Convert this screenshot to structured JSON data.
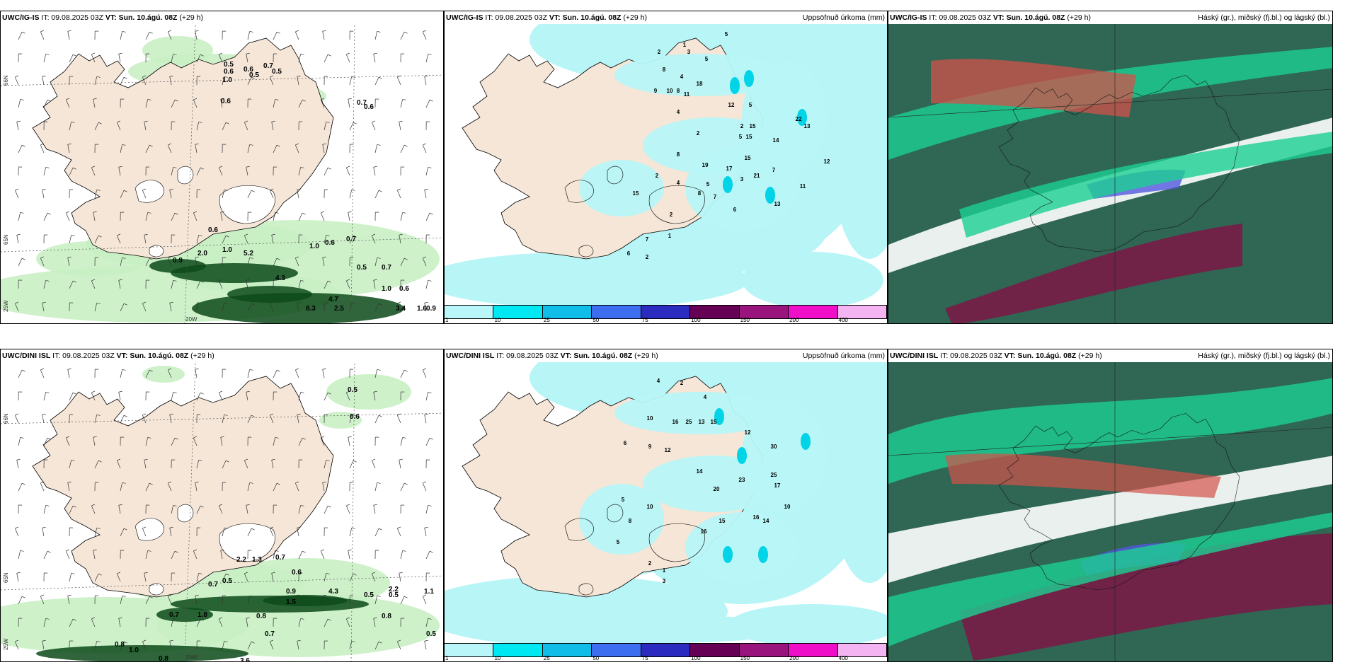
{
  "panels": [
    {
      "id": "p1",
      "model": "UWC/IG-IS",
      "it": "IT: 09.08.2025 03Z",
      "vt_label": "VT:",
      "vt": "Sun. 10.ágú. 08Z",
      "lead": "(+29 h)",
      "right": "",
      "kind": "wind",
      "lat_labels": [
        "66N",
        "65N",
        "25W",
        "20W"
      ],
      "values": [
        "0.6",
        "0.5",
        "0.7",
        "1.0",
        "0.6",
        "0.5",
        "0.5",
        "0.6",
        "0.7",
        "0.6",
        "0.6",
        "1.0",
        "0.9",
        "2.0",
        "5.2",
        "1.0",
        "0.6",
        "0.7",
        "0.5",
        "0.7",
        "4.3",
        "8.3",
        "4.7",
        "2.5",
        "1.0",
        "0.6",
        "3.4",
        "1.6",
        "0.9"
      ]
    },
    {
      "id": "p2",
      "model": "UWC/IG-IS",
      "it": "IT: 09.08.2025 03Z",
      "vt_label": "VT:",
      "vt": "Sun. 10.ágú. 08Z",
      "lead": "(+29 h)",
      "right": "Uppsöfnuð úrkoma (mm)",
      "kind": "precip",
      "values": [
        "1",
        "3",
        "5",
        "5",
        "4",
        "2",
        "8",
        "9",
        "10",
        "11",
        "12",
        "18",
        "15",
        "5",
        "15",
        "8",
        "2",
        "5",
        "4",
        "8",
        "17",
        "5",
        "19",
        "3",
        "7",
        "2",
        "14",
        "22",
        "13",
        "15",
        "21",
        "11",
        "12",
        "13",
        "8",
        "7",
        "6",
        "4",
        "2",
        "15",
        "2",
        "1",
        "2",
        "6",
        "7"
      ]
    },
    {
      "id": "p3",
      "model": "UWC/IG-IS",
      "it": "IT: 09.08.2025 03Z",
      "vt_label": "VT:",
      "vt": "Sun. 10.ágú. 08Z",
      "lead": "(+29 h)",
      "right": "Háský (gr.), miðský (fj.bl.) og lágský (bl.)",
      "kind": "cloud"
    },
    {
      "id": "p4",
      "model": "UWC/DINI ISL",
      "it": "IT: 09.08.2025 03Z",
      "vt_label": "VT:",
      "vt": "Sun. 10.ágú. 08Z",
      "lead": "(+29 h)",
      "right": "",
      "kind": "wind",
      "lat_labels": [
        "66N",
        "65N",
        "25W",
        "20W"
      ],
      "values": [
        "0.5",
        "0.6",
        "1.3",
        "0.7",
        "0.6",
        "0.5",
        "0.9",
        "2.2",
        "0.5",
        "0.7",
        "0.8",
        "1.5",
        "4.3",
        "2.2",
        "1.1",
        "0.5",
        "0.8",
        "0.7",
        "1.8",
        "1.0",
        "0.8",
        "0.7",
        "3.6",
        "0.8",
        "0.5"
      ]
    },
    {
      "id": "p5",
      "model": "UWC/DINI ISL",
      "it": "IT: 09.08.2025 03Z",
      "vt_label": "VT:",
      "vt": "Sun. 10.ágú. 08Z",
      "lead": "(+29 h)",
      "right": "Uppsöfnuð úrkoma (mm)",
      "kind": "precip",
      "values": [
        "2",
        "4",
        "4",
        "10",
        "16",
        "25",
        "13",
        "15",
        "12",
        "30",
        "6",
        "9",
        "12",
        "14",
        "20",
        "23",
        "17",
        "10",
        "14",
        "16",
        "25",
        "5",
        "10",
        "8",
        "5",
        "16",
        "15",
        "2",
        "1",
        "3"
      ]
    },
    {
      "id": "p6",
      "model": "UWC/DINI ISL",
      "it": "IT: 09.08.2025 03Z",
      "vt_label": "VT:",
      "vt": "Sun. 10.ágú. 08Z",
      "lead": "(+29 h)",
      "right": "Háský (gr.), miðský (fj.bl.) og lágský (bl.)",
      "kind": "cloud"
    }
  ],
  "colorbar": {
    "colors": [
      "#b9f6fa",
      "#00e8f2",
      "#10bde8",
      "#3d6ef0",
      "#2b2bbf",
      "#650055",
      "#99147d",
      "#f00fc8",
      "#f4b3f1"
    ],
    "ticks": [
      "1",
      "10",
      "25",
      "50",
      "75",
      "100",
      "150",
      "200",
      "400"
    ]
  },
  "colors": {
    "land": "#f5e6d8",
    "precip": "#b7f5f7",
    "wind_green": "#c9f0c4",
    "wind_dark": "#0c4a1a",
    "cloud_dark": "#2f6654",
    "cloud_green": "#1ccf92",
    "cloud_red": "#d3524a",
    "cloud_maroon": "#7c1845",
    "cloud_blue": "#5257e0"
  }
}
